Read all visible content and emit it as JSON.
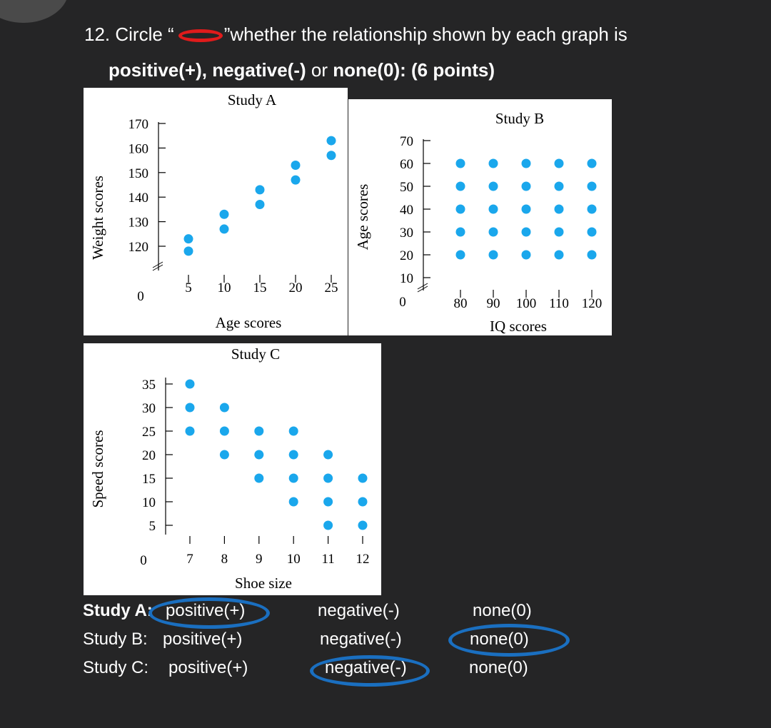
{
  "question": {
    "number_text": "12. Circle “",
    "text_after": "”whether the relationship shown by  each graph is",
    "line2_bold_a": "positive(+), negative(-)",
    "line2_or": " or ",
    "line2_bold_b": "none(0): (6 points)"
  },
  "colors": {
    "background": "#252526",
    "marker": "#1aa7ec",
    "answer_circle": "#1a6fc0",
    "question_circle": "#e01b1b"
  },
  "chart_data": [
    {
      "type": "scatter",
      "title": "Study A",
      "xlabel": "Age scores",
      "ylabel": "Weight scores",
      "x_ticks": [
        "5",
        "10",
        "15",
        "20",
        "25"
      ],
      "y_ticks": [
        "120",
        "130",
        "140",
        "150",
        "160",
        "170"
      ],
      "zero_label": "0",
      "points": [
        [
          5,
          118
        ],
        [
          5,
          123
        ],
        [
          10,
          127
        ],
        [
          10,
          133
        ],
        [
          15,
          137
        ],
        [
          15,
          143
        ],
        [
          20,
          147
        ],
        [
          20,
          153
        ],
        [
          25,
          157
        ],
        [
          25,
          163
        ]
      ]
    },
    {
      "type": "scatter",
      "title": "Study B",
      "xlabel": "IQ scores",
      "ylabel": "Age scores",
      "x_ticks": [
        "80",
        "90",
        "100",
        "110",
        "120"
      ],
      "y_ticks": [
        "10",
        "20",
        "30",
        "40",
        "50",
        "60",
        "70"
      ],
      "zero_label": "0",
      "points": [
        [
          80,
          20
        ],
        [
          80,
          30
        ],
        [
          80,
          40
        ],
        [
          80,
          50
        ],
        [
          80,
          60
        ],
        [
          90,
          20
        ],
        [
          90,
          30
        ],
        [
          90,
          40
        ],
        [
          90,
          50
        ],
        [
          90,
          60
        ],
        [
          100,
          20
        ],
        [
          100,
          30
        ],
        [
          100,
          40
        ],
        [
          100,
          50
        ],
        [
          100,
          60
        ],
        [
          110,
          20
        ],
        [
          110,
          30
        ],
        [
          110,
          40
        ],
        [
          110,
          50
        ],
        [
          110,
          60
        ],
        [
          120,
          20
        ],
        [
          120,
          30
        ],
        [
          120,
          40
        ],
        [
          120,
          50
        ],
        [
          120,
          60
        ]
      ]
    },
    {
      "type": "scatter",
      "title": "Study C",
      "xlabel": "Shoe size",
      "ylabel": "Speed scores",
      "x_ticks": [
        "7",
        "8",
        "9",
        "10",
        "11",
        "12"
      ],
      "y_ticks": [
        "5",
        "10",
        "15",
        "20",
        "25",
        "30",
        "35"
      ],
      "zero_label": "0",
      "points": [
        [
          7,
          25
        ],
        [
          7,
          30
        ],
        [
          7,
          35
        ],
        [
          8,
          20
        ],
        [
          8,
          25
        ],
        [
          8,
          30
        ],
        [
          9,
          15
        ],
        [
          9,
          20
        ],
        [
          9,
          25
        ],
        [
          10,
          10
        ],
        [
          10,
          15
        ],
        [
          10,
          20
        ],
        [
          10,
          25
        ],
        [
          11,
          5
        ],
        [
          11,
          10
        ],
        [
          11,
          15
        ],
        [
          11,
          20
        ],
        [
          12,
          5
        ],
        [
          12,
          10
        ],
        [
          12,
          15
        ]
      ]
    }
  ],
  "answers": {
    "rows": [
      {
        "label": "Study A:",
        "positive": "positive(+)",
        "negative": "negative(-)",
        "none": "none(0)",
        "circled": "positive"
      },
      {
        "label": "Study B:",
        "positive": "positive(+)",
        "negative": "negative(-)",
        "none": "none(0)",
        "circled": "none"
      },
      {
        "label": "Study C:",
        "positive": "positive(+)",
        "negative": "negative(-)",
        "none": "none(0)",
        "circled": "negative"
      }
    ]
  }
}
